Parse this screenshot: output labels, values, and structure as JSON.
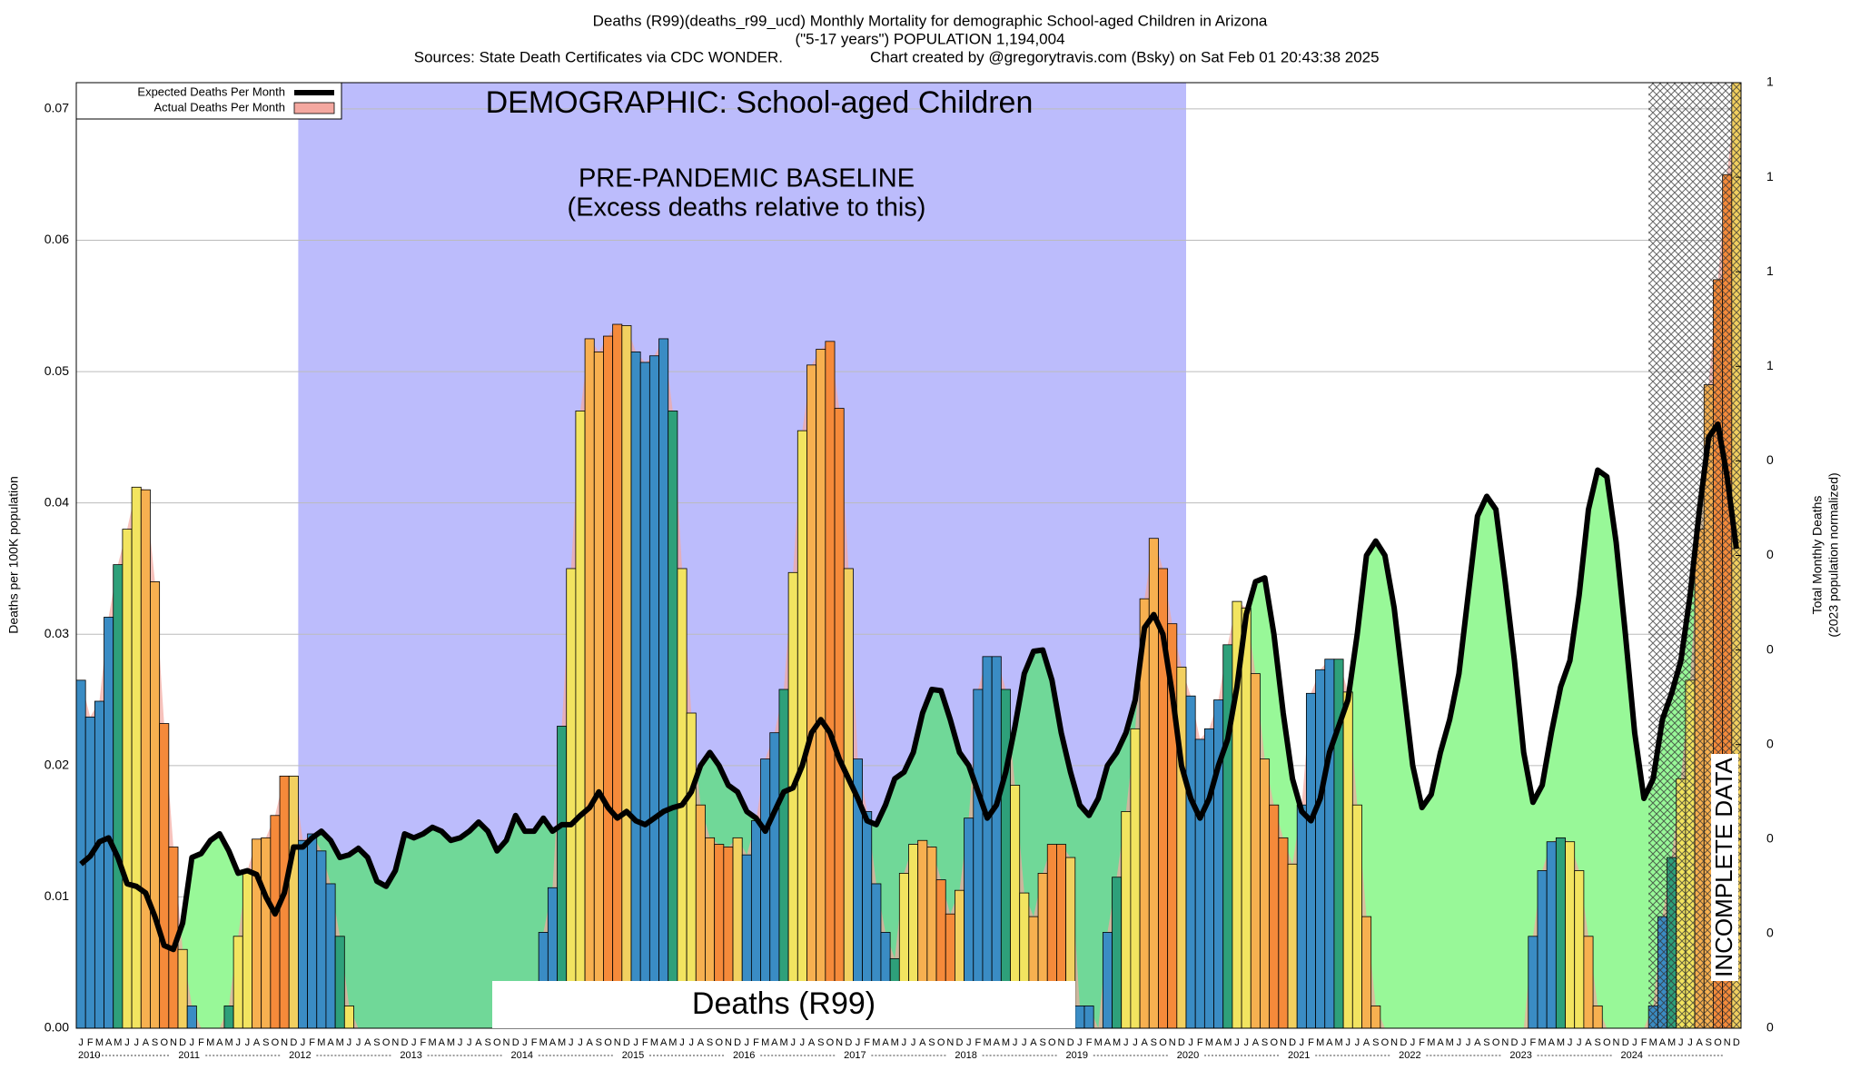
{
  "chart_data": {
    "type": "bar",
    "title": [
      "Deaths (R99)(deaths_r99_ucd) Monthly Mortality for demographic School-aged Children in Arizona",
      "(\"5-17 years\") POPULATION 1,194,004"
    ],
    "sources": "Sources: State Death Certificates via CDC WONDER.",
    "credit": "Chart created by @gregorytravis.com (Bsky) on Sat Feb 01 20:43:38 2025",
    "annotations": {
      "demographic": "DEMOGRAPHIC: School-aged Children",
      "baseline": [
        "PRE-PANDEMIC BASELINE",
        "(Excess deaths relative to this)"
      ],
      "cause": "Deaths (R99)",
      "incomplete": "INCOMPLETE DATA"
    },
    "ylabel": "Deaths per 100K population",
    "y2label": [
      "Total Monthly Deaths",
      "(2023 population normalized)"
    ],
    "months": [
      "J",
      "F",
      "M",
      "A",
      "M",
      "J",
      "J",
      "A",
      "S",
      "O",
      "N",
      "D"
    ],
    "years": [
      "2010",
      "2011",
      "2012",
      "2013",
      "2014",
      "2015",
      "2016",
      "2017",
      "2018",
      "2019",
      "2020",
      "2021",
      "2022",
      "2023",
      "2024"
    ],
    "ylim": [
      0,
      0.072
    ],
    "yticks": [
      {
        "value": 0,
        "label": "0.00"
      },
      0.01,
      0.02,
      0.03,
      0.04,
      0.05,
      0.06,
      0.07
    ],
    "y2lim": [
      0,
      1
    ],
    "y2ticks": [
      {
        "value": 0,
        "label": "0"
      },
      {
        "value": 0.1,
        "label": "0"
      },
      {
        "value": 0.2,
        "label": "0"
      },
      {
        "value": 0.3,
        "label": "0"
      },
      {
        "value": 0.4,
        "label": "0"
      },
      {
        "value": 0.5,
        "label": "0"
      },
      {
        "value": 0.6,
        "label": "0"
      },
      {
        "value": 0.7,
        "label": "1"
      },
      {
        "value": 0.8,
        "label": "1"
      },
      {
        "value": 0.9,
        "label": "1"
      },
      {
        "value": 1,
        "label": "1"
      }
    ],
    "grid": true,
    "legend": "upper left",
    "month_colors": [
      "#3a8cc4",
      "#3a8cc4",
      "#3a8cc4",
      "#3a8cc4",
      "#2ea07a",
      "#f2e460",
      "#f2e460",
      "#f7b050",
      "#f7b050",
      "#f58a3a",
      "#f58a3a",
      "#f2d060"
    ],
    "area_color": "#98f898",
    "baseline_area_color": "#70d898",
    "baseline_color": "#bcbcfc",
    "series": [
      {
        "name": "Expected Deaths Per Month",
        "type": "line",
        "color": "#000000",
        "values": [
          0.0125,
          0.0131,
          0.0142,
          0.0145,
          0.013,
          0.011,
          0.0108,
          0.0103,
          0.0085,
          0.0063,
          0.006,
          0.008,
          0.013,
          0.0133,
          0.0143,
          0.0148,
          0.0135,
          0.0118,
          0.012,
          0.0117,
          0.01,
          0.0087,
          0.0103,
          0.0138,
          0.0138,
          0.0145,
          0.015,
          0.0143,
          0.013,
          0.0132,
          0.0137,
          0.013,
          0.0112,
          0.0108,
          0.012,
          0.0148,
          0.0145,
          0.0148,
          0.0153,
          0.015,
          0.0143,
          0.0145,
          0.015,
          0.0157,
          0.015,
          0.0135,
          0.0143,
          0.0162,
          0.015,
          0.015,
          0.016,
          0.015,
          0.0155,
          0.0155,
          0.0162,
          0.0168,
          0.018,
          0.0168,
          0.016,
          0.0165,
          0.0158,
          0.0155,
          0.016,
          0.0165,
          0.0168,
          0.017,
          0.018,
          0.02,
          0.021,
          0.02,
          0.0185,
          0.018,
          0.0165,
          0.016,
          0.015,
          0.0165,
          0.018,
          0.0183,
          0.02,
          0.0225,
          0.0235,
          0.0225,
          0.0205,
          0.019,
          0.0175,
          0.0158,
          0.0155,
          0.017,
          0.019,
          0.0195,
          0.021,
          0.024,
          0.0258,
          0.0257,
          0.0235,
          0.021,
          0.02,
          0.018,
          0.016,
          0.017,
          0.0195,
          0.023,
          0.027,
          0.0287,
          0.0288,
          0.0265,
          0.0225,
          0.0195,
          0.017,
          0.0162,
          0.0175,
          0.02,
          0.021,
          0.0225,
          0.025,
          0.0305,
          0.0315,
          0.03,
          0.0255,
          0.02,
          0.0175,
          0.016,
          0.0175,
          0.02,
          0.022,
          0.026,
          0.0315,
          0.034,
          0.0343,
          0.03,
          0.024,
          0.019,
          0.0165,
          0.0158,
          0.0175,
          0.021,
          0.023,
          0.025,
          0.03,
          0.036,
          0.0371,
          0.036,
          0.032,
          0.026,
          0.02,
          0.0168,
          0.0178,
          0.021,
          0.0235,
          0.027,
          0.033,
          0.039,
          0.0405,
          0.0395,
          0.034,
          0.028,
          0.021,
          0.0172,
          0.0185,
          0.0225,
          0.026,
          0.028,
          0.033,
          0.0395,
          0.0425,
          0.042,
          0.037,
          0.03,
          0.0225,
          0.0175,
          0.019,
          0.0235,
          0.0255,
          0.028,
          0.033,
          0.0395,
          0.045,
          0.046,
          0.042,
          0.0365
        ]
      },
      {
        "name": "Actual Deaths Per Month",
        "color": "#f4a8a0",
        "values": [
          0.0265,
          0.0237,
          0.0249,
          0.0313,
          0.0353,
          0.038,
          0.0412,
          0.041,
          0.034,
          0.0232,
          0.0138,
          0.006,
          0.0017,
          0,
          0,
          0,
          0.0017,
          0.007,
          0.012,
          0.0144,
          0.0145,
          0.0162,
          0.0192,
          0.0192,
          0.0143,
          0.0148,
          0.0135,
          0.011,
          0.007,
          0.0017,
          0,
          0,
          0,
          0,
          0,
          0,
          0,
          0,
          0,
          0,
          0,
          0,
          0,
          0,
          0,
          0,
          0,
          0,
          0,
          0,
          0.0073,
          0.0107,
          0.023,
          0.035,
          0.047,
          0.0525,
          0.0515,
          0.0527,
          0.0536,
          0.0535,
          0.0515,
          0.0507,
          0.0512,
          0.0525,
          0.047,
          0.035,
          0.024,
          0.017,
          0.0145,
          0.014,
          0.0138,
          0.0145,
          0.0132,
          0.0158,
          0.0205,
          0.0225,
          0.0258,
          0.0347,
          0.0455,
          0.0505,
          0.0517,
          0.0523,
          0.0472,
          0.035,
          0.0205,
          0.0165,
          0.011,
          0.0073,
          0.0053,
          0.0118,
          0.014,
          0.0143,
          0.0138,
          0.0113,
          0.0087,
          0.0105,
          0.016,
          0.0258,
          0.0283,
          0.0283,
          0.0258,
          0.0185,
          0.0103,
          0.0085,
          0.0118,
          0.014,
          0.014,
          0.013,
          0.0017,
          0.0017,
          0,
          0.0073,
          0.0115,
          0.0165,
          0.0228,
          0.0327,
          0.0373,
          0.035,
          0.0308,
          0.0275,
          0.0253,
          0.022,
          0.0228,
          0.025,
          0.0292,
          0.0325,
          0.032,
          0.027,
          0.0205,
          0.017,
          0.0145,
          0.0125,
          0.017,
          0.0255,
          0.0273,
          0.0281,
          0.0281,
          0.0256,
          0.017,
          0.0085,
          0.0017,
          0,
          0,
          0,
          0,
          0,
          0,
          0,
          0,
          0,
          0,
          0,
          0,
          0,
          0,
          0,
          0,
          0.007,
          0.012,
          0.0142,
          0.0145,
          0.0142,
          0.012,
          0.007,
          0.0017,
          0,
          0,
          0,
          0,
          0,
          0.0017,
          0.0085,
          0.013,
          0.019,
          0.0265,
          0.038,
          0.049,
          0.057,
          0.065,
          0.072
        ]
      }
    ]
  }
}
